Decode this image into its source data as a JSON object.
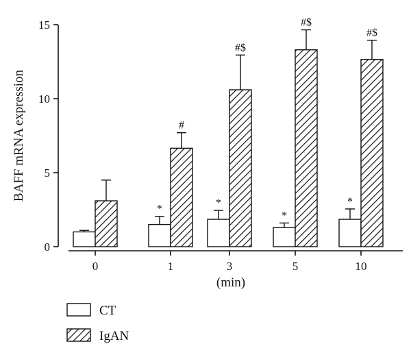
{
  "chart_data": {
    "type": "bar",
    "title": "",
    "xlabel": "(min)",
    "ylabel": "BAFF mRNA expression",
    "ylim": [
      0,
      15
    ],
    "yticks": [
      0,
      5,
      10,
      15
    ],
    "categories": [
      "0",
      "1",
      "3",
      "5",
      "10"
    ],
    "series": [
      {
        "name": "CT",
        "fill": "white",
        "values": [
          1.0,
          1.5,
          1.85,
          1.3,
          1.85
        ],
        "errors": [
          0.1,
          0.55,
          0.6,
          0.3,
          0.7
        ],
        "annotations": [
          "",
          "*",
          "*",
          "*",
          "*"
        ]
      },
      {
        "name": "IgAN",
        "fill": "hatched",
        "values": [
          3.1,
          6.65,
          10.6,
          13.3,
          12.65
        ],
        "errors": [
          1.4,
          1.05,
          2.35,
          1.35,
          1.3
        ],
        "annotations": [
          "",
          "#",
          "#$",
          "#$",
          "#$"
        ]
      }
    ],
    "legend": {
      "placement": "bottom-left",
      "entries": [
        "CT",
        "IgAN"
      ]
    },
    "grid": false,
    "colors": {
      "bar_stroke": "#111111",
      "hatch": "#111111",
      "background": "#ffffff"
    }
  }
}
